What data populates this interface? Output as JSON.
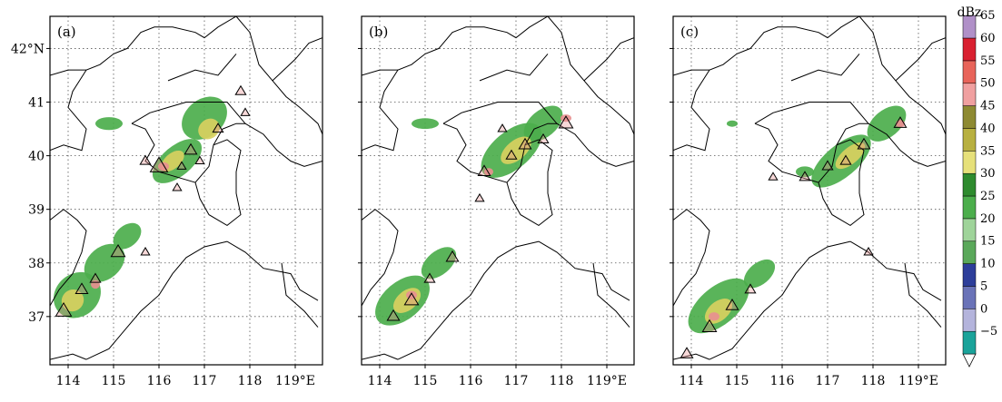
{
  "axes": {
    "lat_ticks": [
      {
        "value": 37,
        "label": "37"
      },
      {
        "value": 38,
        "label": "38"
      },
      {
        "value": 39,
        "label": "39"
      },
      {
        "value": 40,
        "label": "40"
      },
      {
        "value": 41,
        "label": "41"
      },
      {
        "value": 42,
        "label": "42°N"
      }
    ],
    "lon_ticks": [
      {
        "value": 114,
        "label": "114"
      },
      {
        "value": 115,
        "label": "115"
      },
      {
        "value": 116,
        "label": "116"
      },
      {
        "value": 117,
        "label": "117"
      },
      {
        "value": 118,
        "label": "118"
      },
      {
        "value": 119,
        "label": "119°E"
      }
    ],
    "lon_range": [
      113.6,
      119.6
    ],
    "lat_range": [
      36.1,
      42.6
    ],
    "grid": "dotted"
  },
  "panels": [
    {
      "label": "(a)"
    },
    {
      "label": "(b)"
    },
    {
      "label": "(c)"
    }
  ],
  "colorbar": {
    "unit": "dBz",
    "levels": [
      "−5",
      "0",
      "5",
      "10",
      "15",
      "20",
      "25",
      "30",
      "35",
      "40",
      "45",
      "50",
      "55",
      "60",
      "65"
    ],
    "colors": [
      "#1aa39a",
      "#b4b4dc",
      "#6a73b8",
      "#2d3e9a",
      "#5aa85a",
      "#9fd49a",
      "#4cae4c",
      "#2e8b2e",
      "#e6e07a",
      "#b8b040",
      "#8e8a32",
      "#f0a0a0",
      "#e8645a",
      "#d92030",
      "#b090c8",
      "#7a60b0"
    ]
  },
  "chart_data": {
    "type": "map",
    "colors": {
      "land_line": "#000000",
      "echo_weak": "#4cae4c",
      "echo_mid": "#d8d060",
      "echo_strong": "#e89090"
    }
  }
}
